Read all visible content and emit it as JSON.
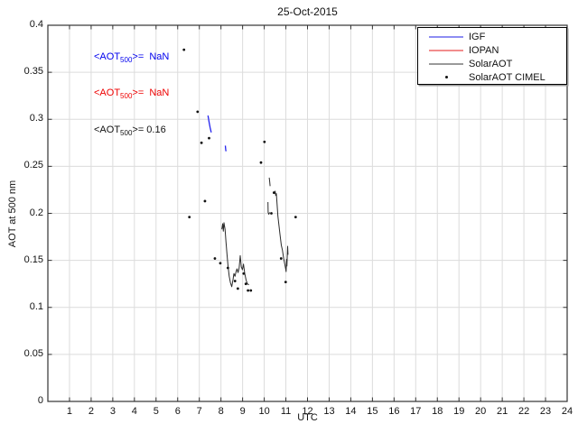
{
  "chart_data": {
    "type": "line",
    "title": "25-Oct-2015",
    "xlabel": "UTC",
    "ylabel": "AOT at 500 nm",
    "xlim": [
      0,
      24
    ],
    "ylim": [
      0,
      0.4
    ],
    "grid": true,
    "grid_color": "#dcdcdc",
    "axis_color": "#333333",
    "x_ticks": [
      1,
      2,
      3,
      4,
      5,
      6,
      7,
      8,
      9,
      10,
      11,
      12,
      13,
      14,
      15,
      16,
      17,
      18,
      19,
      20,
      21,
      22,
      23,
      24
    ],
    "y_ticks": [
      {
        "v": 0,
        "label": "0"
      },
      {
        "v": 0.05,
        "label": "0.05"
      },
      {
        "v": 0.1,
        "label": "0.1"
      },
      {
        "v": 0.15,
        "label": "0.15"
      },
      {
        "v": 0.2,
        "label": "0.2"
      },
      {
        "v": 0.25,
        "label": "0.25"
      },
      {
        "v": 0.3,
        "label": "0.3"
      },
      {
        "v": 0.35,
        "label": "0.35"
      },
      {
        "v": 0.4,
        "label": "0.4"
      }
    ],
    "legend": [
      {
        "label": "IGF",
        "type": "line",
        "color": "#8d8df2"
      },
      {
        "label": "IOPAN",
        "type": "line",
        "color": "#f28d8d"
      },
      {
        "label": "SolarAOT",
        "type": "line",
        "color": "#9a9a9a"
      },
      {
        "label": "SolarAOT CIMEL",
        "type": "marker",
        "color": "#111111"
      }
    ],
    "series": [
      {
        "name": "IGF",
        "type": "line",
        "color": "#2222ee",
        "width": 1.3,
        "segments": [
          [
            [
              7.4,
              0.304
            ],
            [
              7.43,
              0.3
            ],
            [
              7.46,
              0.296
            ],
            [
              7.5,
              0.291
            ],
            [
              7.55,
              0.286
            ]
          ],
          [
            [
              8.2,
              0.272
            ],
            [
              8.22,
              0.268
            ],
            [
              8.23,
              0.266
            ]
          ]
        ]
      },
      {
        "name": "IOPAN",
        "type": "line",
        "color": "#cc3333",
        "width": 1,
        "segments": [
          [
            [
              5.7,
              0.0
            ],
            [
              15.1,
              0.0
            ]
          ]
        ]
      },
      {
        "name": "SolarAOT",
        "type": "line",
        "color": "#2b2b2b",
        "width": 1,
        "segments": [
          [
            [
              8.04,
              0.183
            ],
            [
              8.08,
              0.189
            ],
            [
              8.11,
              0.181
            ],
            [
              8.14,
              0.19
            ],
            [
              8.19,
              0.183
            ],
            [
              8.23,
              0.17
            ],
            [
              8.28,
              0.156
            ],
            [
              8.33,
              0.143
            ],
            [
              8.38,
              0.133
            ],
            [
              8.44,
              0.126
            ],
            [
              8.5,
              0.122
            ],
            [
              8.56,
              0.13
            ],
            [
              8.6,
              0.136
            ],
            [
              8.65,
              0.133
            ],
            [
              8.7,
              0.138
            ],
            [
              8.74,
              0.141
            ],
            [
              8.79,
              0.137
            ],
            [
              8.84,
              0.142
            ],
            [
              8.89,
              0.155
            ],
            [
              8.94,
              0.143
            ],
            [
              8.99,
              0.14
            ],
            [
              9.04,
              0.146
            ],
            [
              9.1,
              0.136
            ],
            [
              9.16,
              0.129
            ],
            [
              9.22,
              0.125
            ],
            [
              9.29,
              0.124
            ]
          ],
          [
            [
              10.5,
              0.224
            ],
            [
              10.53,
              0.219
            ],
            [
              10.56,
              0.221
            ],
            [
              10.6,
              0.207
            ],
            [
              10.63,
              0.197
            ],
            [
              10.68,
              0.187
            ],
            [
              10.73,
              0.177
            ],
            [
              10.79,
              0.166
            ],
            [
              10.84,
              0.161
            ],
            [
              10.9,
              0.152
            ],
            [
              10.95,
              0.146
            ],
            [
              10.99,
              0.141
            ],
            [
              11.01,
              0.138
            ],
            [
              11.03,
              0.151
            ],
            [
              11.05,
              0.144
            ],
            [
              11.08,
              0.165
            ],
            [
              11.1,
              0.156
            ]
          ],
          [
            [
              10.23,
              0.238
            ],
            [
              10.25,
              0.234
            ],
            [
              10.27,
              0.229
            ]
          ],
          [
            [
              10.17,
              0.212
            ],
            [
              10.18,
              0.201
            ],
            [
              10.21,
              0.199
            ],
            [
              10.25,
              0.201
            ]
          ]
        ]
      },
      {
        "name": "SolarAOT CIMEL",
        "type": "scatter",
        "color": "#111111",
        "size": 1.4,
        "points": [
          [
            6.29,
            0.374
          ],
          [
            6.54,
            0.196
          ],
          [
            6.92,
            0.308
          ],
          [
            7.1,
            0.275
          ],
          [
            7.26,
            0.213
          ],
          [
            7.45,
            0.28
          ],
          [
            7.72,
            0.152
          ],
          [
            7.97,
            0.147
          ],
          [
            8.32,
            0.142
          ],
          [
            8.65,
            0.128
          ],
          [
            8.78,
            0.12
          ],
          [
            9.05,
            0.136
          ],
          [
            9.15,
            0.125
          ],
          [
            9.25,
            0.118
          ],
          [
            9.38,
            0.118
          ],
          [
            9.85,
            0.254
          ],
          [
            10.01,
            0.276
          ],
          [
            10.33,
            0.2
          ],
          [
            10.45,
            0.222
          ],
          [
            10.78,
            0.152
          ],
          [
            10.99,
            0.127
          ],
          [
            11.45,
            0.196
          ]
        ]
      }
    ]
  },
  "annotations": [
    {
      "prefix": "<AOT",
      "sub": "500",
      "suffix": ">=  NaN",
      "color": "#0000ee"
    },
    {
      "prefix": "<AOT",
      "sub": "500",
      "suffix": ">=  NaN",
      "color": "#ee0000"
    },
    {
      "prefix": "<AOT",
      "sub": "500",
      "suffix": ">= 0.16",
      "color": "#111111"
    }
  ]
}
